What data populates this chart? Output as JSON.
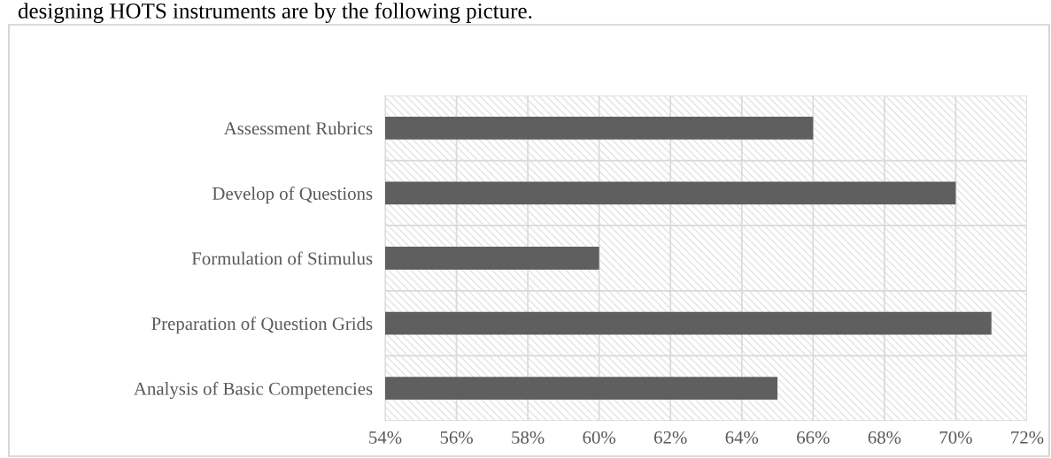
{
  "chart_data": {
    "type": "bar",
    "orientation": "horizontal",
    "annotations": [
      "designing HOTS instruments are by the following picture."
    ],
    "categories": [
      "Assessment Rubrics",
      "Develop of Questions",
      "Formulation of Stimulus",
      "Preparation of Question Grids",
      "Analysis of Basic Competencies"
    ],
    "values": [
      66,
      70,
      60,
      71,
      65
    ],
    "color": "#5f5f5f",
    "xlim": [
      54,
      72
    ],
    "xticks": [
      {
        "value": 54,
        "label": "54%"
      },
      {
        "value": 56,
        "label": "56%"
      },
      {
        "value": 58,
        "label": "58%"
      },
      {
        "value": 60,
        "label": "60%"
      },
      {
        "value": 62,
        "label": "62%"
      },
      {
        "value": 64,
        "label": "64%"
      },
      {
        "value": 66,
        "label": "66%"
      },
      {
        "value": 68,
        "label": "68%"
      },
      {
        "value": 70,
        "label": "70%"
      },
      {
        "value": 72,
        "label": "72%"
      }
    ],
    "grid": true,
    "legend": false
  }
}
